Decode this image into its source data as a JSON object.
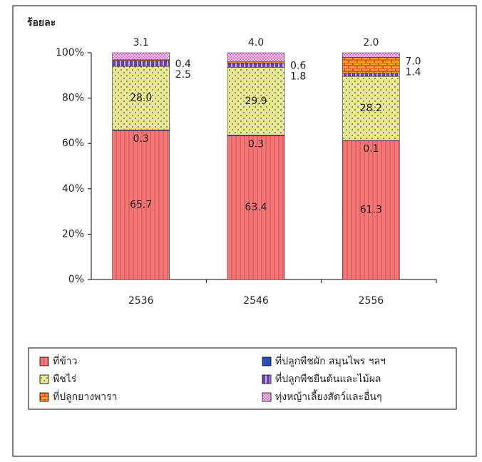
{
  "chart_data": {
    "type": "stacked_bar_percent",
    "y_axis_label": "ร้อยละ",
    "categories": [
      "2536",
      "2546",
      "2556"
    ],
    "series": [
      {
        "name": "ที่ข้าว",
        "color": "#f07878",
        "values": [
          65.7,
          63.4,
          61.3
        ],
        "value_labels": [
          "65.7",
          "63.4",
          "61.3"
        ]
      },
      {
        "name": "ที่ปลูกพืชผัก สมุนไพร ฯลฯ",
        "color": "#2850b0",
        "values": [
          0.3,
          0.3,
          0.1
        ],
        "value_labels": [
          "0.3",
          "0.3",
          "0.1"
        ]
      },
      {
        "name": "พืชไร่",
        "color": "#e8e890",
        "values": [
          28.0,
          29.9,
          28.2
        ],
        "value_labels": [
          "28.0",
          "29.9",
          "28.2"
        ]
      },
      {
        "name": "ที่ปลูกพืชยืนต้นและไม้ผล",
        "color": "#7040a0",
        "values": [
          2.5,
          1.8,
          1.4
        ],
        "value_labels": [
          "2.5",
          "1.8",
          "1.4"
        ]
      },
      {
        "name": "ที่ปลูกยางพารา",
        "color": "#f0a030",
        "values": [
          0.4,
          0.6,
          7.0
        ],
        "value_labels": [
          "0.4",
          "0.6",
          "7.0"
        ]
      },
      {
        "name": "ทุ่งหญ้าเลี้ยงสัตว์และอื่นๆ",
        "color": "#e070c8",
        "values": [
          3.1,
          4.0,
          2.0
        ],
        "value_labels": [
          "3.1",
          "4.0",
          "2.0"
        ]
      }
    ],
    "ylim": [
      0,
      100
    ],
    "yticks": [
      {
        "value": 0,
        "label": "0%"
      },
      {
        "value": 20,
        "label": "20%"
      },
      {
        "value": 40,
        "label": "40%"
      },
      {
        "value": 60,
        "label": "60%"
      },
      {
        "value": 80,
        "label": "80%"
      },
      {
        "value": 100,
        "label": "100%"
      }
    ],
    "legend": "bottom"
  }
}
